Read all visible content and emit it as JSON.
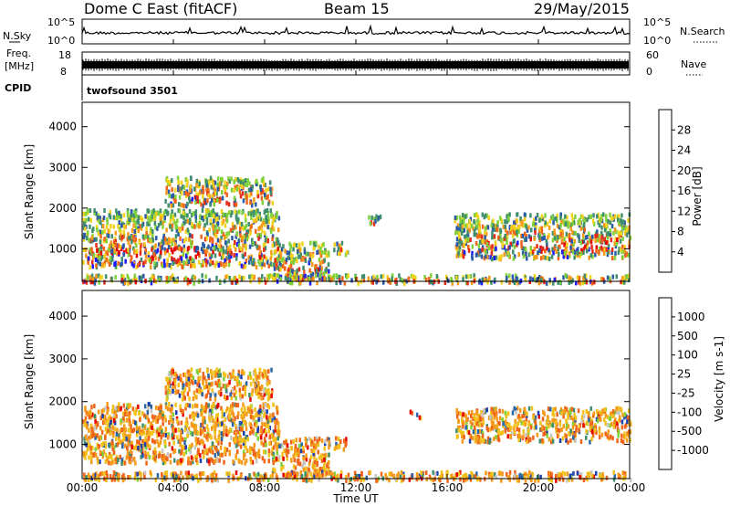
{
  "header": {
    "title": "Dome C East (fitACF)",
    "beam": "Beam 15",
    "date": "29/May/2015"
  },
  "top_panels": {
    "nsky_label": "N.Sky",
    "nsky_ticks": [
      "10^5",
      "10^0"
    ],
    "nsearch_label": "N.Search",
    "nsearch_ticks": [
      "10^5",
      "10^0"
    ],
    "freq_label": "Freq.",
    "freq_unit": "[MHz]",
    "freq_ticks": [
      "18",
      "8"
    ],
    "nave_label": "Nave",
    "nave_ticks": [
      "60",
      "0"
    ],
    "cpid_label": "CPID",
    "cpid_value": "twofsound 3501"
  },
  "colors": {
    "power_scale": [
      "#1a1aff",
      "#2a5aa8",
      "#3f8f6e",
      "#7fd23a",
      "#f2d21a",
      "#f59a1a",
      "#f0651a",
      "#e62a1a",
      "#e60000"
    ],
    "velocity_scale": [
      "#1a3fb0",
      "#2c66a8",
      "#3f8f6e",
      "#7fd23a",
      "#c8c8c8",
      "#f2c21a",
      "#f59a1a",
      "#f0651a",
      "#e60000"
    ]
  },
  "chart_data": [
    {
      "type": "heatmap",
      "name": "power",
      "ylabel": "Slant Range [km]",
      "yticks": [
        1000,
        2000,
        3000,
        4000
      ],
      "ylim": [
        200,
        4600
      ],
      "xlim": [
        0,
        24
      ],
      "xticks": [
        "00:00",
        "04:00",
        "08:00",
        "12:00",
        "16:00",
        "20:00",
        "00:00"
      ],
      "colorbar_label": "Power [dB]",
      "colorbar_ticks": [
        "4",
        "8",
        "12",
        "16",
        "20",
        "24",
        "28"
      ],
      "regions": [
        {
          "t": [
            0.0,
            8.6
          ],
          "r": [
            600,
            2000
          ]
        },
        {
          "t": [
            3.6,
            8.3
          ],
          "r": [
            2100,
            2800
          ]
        },
        {
          "t": [
            8.3,
            10.8
          ],
          "r": [
            300,
            1200
          ]
        },
        {
          "t": [
            11.0,
            11.6
          ],
          "r": [
            900,
            1200
          ]
        },
        {
          "t": [
            12.5,
            13.1
          ],
          "r": [
            1650,
            1850
          ]
        },
        {
          "t": [
            16.3,
            24.0
          ],
          "r": [
            800,
            1900
          ]
        },
        {
          "t": [
            0.0,
            24.0
          ],
          "r": [
            200,
            400
          ]
        }
      ]
    },
    {
      "type": "heatmap",
      "name": "velocity",
      "ylabel": "Slant Range [km]",
      "yticks": [
        1000,
        2000,
        3000,
        4000
      ],
      "ylim": [
        200,
        4600
      ],
      "xlim": [
        0,
        24
      ],
      "xlabel": "Time UT",
      "xticks": [
        "00:00",
        "04:00",
        "08:00",
        "12:00",
        "16:00",
        "20:00",
        "00:00"
      ],
      "colorbar_label": "Velocity [m s-1]",
      "colorbar_ticks": [
        "1000",
        "500",
        "100",
        "25",
        "-25",
        "-100",
        "-500",
        "-1000"
      ],
      "regions": [
        {
          "t": [
            0.0,
            8.6
          ],
          "r": [
            600,
            2000
          ]
        },
        {
          "t": [
            3.6,
            8.3
          ],
          "r": [
            2100,
            2800
          ]
        },
        {
          "t": [
            8.3,
            10.8
          ],
          "r": [
            300,
            1200
          ]
        },
        {
          "t": [
            11.0,
            11.6
          ],
          "r": [
            900,
            1200
          ]
        },
        {
          "t": [
            14.2,
            14.8
          ],
          "r": [
            1650,
            1850
          ]
        },
        {
          "t": [
            16.3,
            24.0
          ],
          "r": [
            1100,
            1900
          ]
        },
        {
          "t": [
            0.0,
            24.0
          ],
          "r": [
            200,
            400
          ]
        }
      ]
    }
  ]
}
